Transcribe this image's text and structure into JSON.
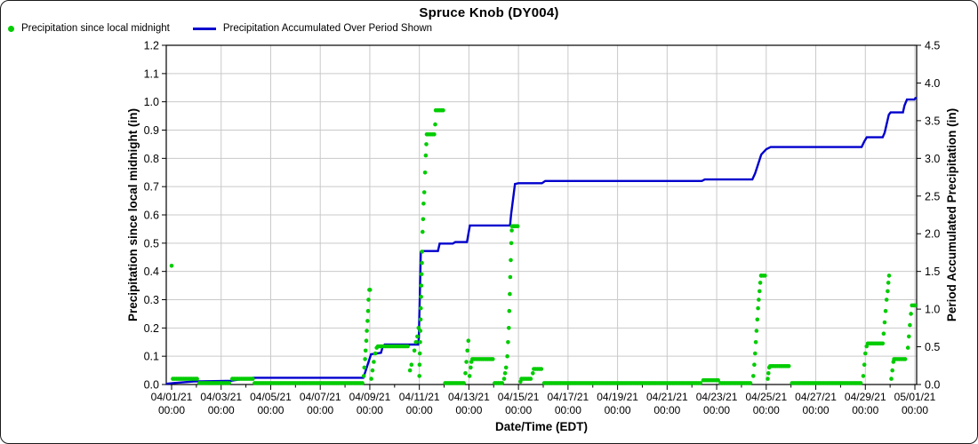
{
  "title": "Spruce Knob (DY004)",
  "legend": [
    {
      "label": "Precipitation since local midnight",
      "color": "#00cc00",
      "marker": "dot"
    },
    {
      "label": "Precipitation Accumulated Over Period Shown",
      "color": "#0000cd",
      "marker": "line"
    }
  ],
  "chart_data": {
    "type": "mixed",
    "title": "Spruce Knob (DY004)",
    "xlabel": "Date/Time (EDT)",
    "left_ylabel": "Precipitation since local midnight (in)",
    "right_ylabel": "Period Accumulated Precipitation (in)",
    "left_ylim": [
      0,
      1.2
    ],
    "left_yticks": [
      "0.0",
      "0.1",
      "0.2",
      "0.3",
      "0.4",
      "0.5",
      "0.6",
      "0.7",
      "0.8",
      "0.9",
      "1.0",
      "1.1",
      "1.2"
    ],
    "right_ylim": [
      0,
      4.5
    ],
    "right_yticks": [
      "0.0",
      "0.5",
      "1.0",
      "1.5",
      "2.0",
      "2.5",
      "3.0",
      "3.5",
      "4.0",
      "4.5"
    ],
    "grid": true,
    "legend_position": "top-left",
    "x_ticks": [
      {
        "day": 1,
        "date": "04/01/21",
        "time": "00:00"
      },
      {
        "day": 3,
        "date": "04/03/21",
        "time": "00:00"
      },
      {
        "day": 5,
        "date": "04/05/21",
        "time": "00:00"
      },
      {
        "day": 7,
        "date": "04/07/21",
        "time": "00:00"
      },
      {
        "day": 9,
        "date": "04/09/21",
        "time": "00:00"
      },
      {
        "day": 11,
        "date": "04/11/21",
        "time": "00:00"
      },
      {
        "day": 13,
        "date": "04/13/21",
        "time": "00:00"
      },
      {
        "day": 15,
        "date": "04/15/21",
        "time": "00:00"
      },
      {
        "day": 17,
        "date": "04/17/21",
        "time": "00:00"
      },
      {
        "day": 19,
        "date": "04/19/21",
        "time": "00:00"
      },
      {
        "day": 21,
        "date": "04/21/21",
        "time": "00:00"
      },
      {
        "day": 23,
        "date": "04/23/21",
        "time": "00:00"
      },
      {
        "day": 25,
        "date": "04/25/21",
        "time": "00:00"
      },
      {
        "day": 27,
        "date": "04/27/21",
        "time": "00:00"
      },
      {
        "day": 29,
        "date": "04/29/21",
        "time": "00:00"
      },
      {
        "day": 31,
        "date": "05/01/21",
        "time": "00:00"
      }
    ],
    "x_minor_tick_days": [
      2,
      4,
      6,
      8,
      10,
      12,
      14,
      16,
      18,
      20,
      22,
      24,
      26,
      28,
      30
    ],
    "x_domain_days": [
      0.785,
      31.1
    ],
    "series": [
      {
        "name": "Precipitation since local midnight",
        "type": "scatter",
        "axis": "left",
        "color": "#00cc00",
        "dot_runs": [
          [
            1.05,
            2.05,
            0.02
          ],
          [
            2.12,
            3.38,
            0.005
          ],
          [
            3.45,
            4.28,
            0.02
          ],
          [
            4.35,
            8.72,
            0.005
          ],
          [
            9.33,
            10.56,
            0.135
          ],
          [
            11.3,
            11.62,
            0.885
          ],
          [
            11.66,
            11.98,
            0.97
          ],
          [
            12.04,
            12.82,
            0.005
          ],
          [
            13.14,
            13.98,
            0.09
          ],
          [
            14.04,
            14.38,
            0.005
          ],
          [
            14.74,
            14.98,
            0.56
          ],
          [
            15.12,
            15.54,
            0.02
          ],
          [
            15.62,
            15.98,
            0.055
          ],
          [
            16.04,
            22.4,
            0.005
          ],
          [
            22.46,
            23.1,
            0.015
          ],
          [
            23.16,
            24.42,
            0.005
          ],
          [
            24.8,
            24.99,
            0.385
          ],
          [
            25.16,
            25.98,
            0.065
          ],
          [
            26.04,
            28.88,
            0.005
          ],
          [
            29.1,
            29.7,
            0.145
          ],
          [
            30.16,
            30.68,
            0.09
          ],
          [
            30.88,
            31.1,
            0.28
          ]
        ],
        "dot_points": [
          [
            1.0,
            0.42
          ],
          [
            8.76,
            0.03
          ],
          [
            8.78,
            0.06
          ],
          [
            8.81,
            0.09
          ],
          [
            8.83,
            0.12
          ],
          [
            8.86,
            0.155
          ],
          [
            8.88,
            0.19
          ],
          [
            8.91,
            0.225
          ],
          [
            8.93,
            0.26
          ],
          [
            8.95,
            0.3
          ],
          [
            8.98,
            0.335
          ],
          [
            9.01,
            0.335
          ],
          [
            9.06,
            0.02
          ],
          [
            9.11,
            0.05
          ],
          [
            9.16,
            0.08
          ],
          [
            9.22,
            0.11
          ],
          [
            9.28,
            0.13
          ],
          [
            10.62,
            0.05
          ],
          [
            10.68,
            0.07
          ],
          [
            10.8,
            0.12
          ],
          [
            10.86,
            0.15
          ],
          [
            10.92,
            0.17
          ],
          [
            10.97,
            0.2
          ],
          [
            11.0,
            0.03
          ],
          [
            11.01,
            0.07
          ],
          [
            11.02,
            0.11
          ],
          [
            11.03,
            0.15
          ],
          [
            11.04,
            0.19
          ],
          [
            11.05,
            0.23
          ],
          [
            11.06,
            0.27
          ],
          [
            11.07,
            0.31
          ],
          [
            11.08,
            0.35
          ],
          [
            11.09,
            0.39
          ],
          [
            11.1,
            0.43
          ],
          [
            11.11,
            0.47
          ],
          [
            11.13,
            0.54
          ],
          [
            11.15,
            0.585
          ],
          [
            11.17,
            0.64
          ],
          [
            11.2,
            0.68
          ],
          [
            11.23,
            0.75
          ],
          [
            11.26,
            0.81
          ],
          [
            11.28,
            0.85
          ],
          [
            11.64,
            0.92
          ],
          [
            12.86,
            0.04
          ],
          [
            12.9,
            0.08
          ],
          [
            12.94,
            0.12
          ],
          [
            12.98,
            0.155
          ],
          [
            13.03,
            0.03
          ],
          [
            13.07,
            0.06
          ],
          [
            13.1,
            0.08
          ],
          [
            14.42,
            0.02
          ],
          [
            14.46,
            0.04
          ],
          [
            14.5,
            0.06
          ],
          [
            14.55,
            0.1
          ],
          [
            14.58,
            0.15
          ],
          [
            14.61,
            0.2
          ],
          [
            14.63,
            0.26
          ],
          [
            14.65,
            0.32
          ],
          [
            14.67,
            0.38
          ],
          [
            14.69,
            0.44
          ],
          [
            14.71,
            0.5
          ],
          [
            14.73,
            0.545
          ],
          [
            15.08,
            0.01
          ],
          [
            15.58,
            0.04
          ],
          [
            24.48,
            0.03
          ],
          [
            24.52,
            0.07
          ],
          [
            24.55,
            0.11
          ],
          [
            24.58,
            0.15
          ],
          [
            24.61,
            0.19
          ],
          [
            24.64,
            0.23
          ],
          [
            24.67,
            0.27
          ],
          [
            24.7,
            0.3
          ],
          [
            24.73,
            0.33
          ],
          [
            24.76,
            0.36
          ],
          [
            24.79,
            0.385
          ],
          [
            25.06,
            0.02
          ],
          [
            25.09,
            0.04
          ],
          [
            25.12,
            0.06
          ],
          [
            28.92,
            0.03
          ],
          [
            28.96,
            0.07
          ],
          [
            29.0,
            0.11
          ],
          [
            29.05,
            0.135
          ],
          [
            29.74,
            0.18
          ],
          [
            29.78,
            0.22
          ],
          [
            29.82,
            0.26
          ],
          [
            29.86,
            0.3
          ],
          [
            29.9,
            0.33
          ],
          [
            29.93,
            0.36
          ],
          [
            29.96,
            0.385
          ],
          [
            30.05,
            0.02
          ],
          [
            30.09,
            0.05
          ],
          [
            30.13,
            0.08
          ],
          [
            30.72,
            0.13
          ],
          [
            30.76,
            0.17
          ],
          [
            30.8,
            0.21
          ],
          [
            30.84,
            0.25
          ]
        ]
      },
      {
        "name": "Precipitation Accumulated Over Period Shown",
        "type": "line",
        "axis": "right",
        "color": "#0000cd",
        "points": [
          [
            0.785,
            0.01
          ],
          [
            1.1,
            0.02
          ],
          [
            1.9,
            0.04
          ],
          [
            3.4,
            0.05
          ],
          [
            3.6,
            0.06
          ],
          [
            4.3,
            0.09
          ],
          [
            8.74,
            0.09
          ],
          [
            8.8,
            0.15
          ],
          [
            9.05,
            0.4
          ],
          [
            9.45,
            0.42
          ],
          [
            9.52,
            0.5
          ],
          [
            9.6,
            0.53
          ],
          [
            10.95,
            0.53
          ],
          [
            10.98,
            0.62
          ],
          [
            11.06,
            1.76
          ],
          [
            11.1,
            1.77
          ],
          [
            11.75,
            1.77
          ],
          [
            11.82,
            1.87
          ],
          [
            12.35,
            1.87
          ],
          [
            12.45,
            1.89
          ],
          [
            12.92,
            1.89
          ],
          [
            13.04,
            2.11
          ],
          [
            14.66,
            2.11
          ],
          [
            14.7,
            2.25
          ],
          [
            14.86,
            2.66
          ],
          [
            15.0,
            2.67
          ],
          [
            15.95,
            2.67
          ],
          [
            16.08,
            2.7
          ],
          [
            22.4,
            2.7
          ],
          [
            22.52,
            2.72
          ],
          [
            24.44,
            2.72
          ],
          [
            24.55,
            2.8
          ],
          [
            24.8,
            3.05
          ],
          [
            25.0,
            3.12
          ],
          [
            25.18,
            3.15
          ],
          [
            28.85,
            3.15
          ],
          [
            28.95,
            3.22
          ],
          [
            29.06,
            3.28
          ],
          [
            29.7,
            3.28
          ],
          [
            29.78,
            3.34
          ],
          [
            29.95,
            3.58
          ],
          [
            30.02,
            3.61
          ],
          [
            30.52,
            3.61
          ],
          [
            30.58,
            3.7
          ],
          [
            30.68,
            3.78
          ],
          [
            30.98,
            3.78
          ],
          [
            31.02,
            3.8
          ],
          [
            31.07,
            3.8
          ]
        ]
      }
    ],
    "colors": {
      "grid": "#c9c9c9",
      "axis": "#000000",
      "background": "#ffffff"
    }
  }
}
